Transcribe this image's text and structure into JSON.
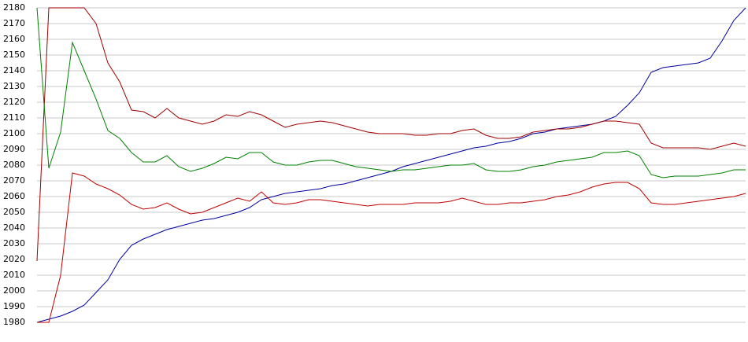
{
  "chart_data": {
    "type": "line",
    "categories": [
      null,
      null,
      null,
      null,
      null,
      null,
      null,
      null,
      null,
      null,
      null,
      null,
      null,
      null,
      null,
      null,
      null,
      null,
      null,
      null,
      null,
      null,
      null,
      null,
      null,
      null,
      null,
      null,
      null,
      null,
      null,
      null,
      null,
      null,
      null,
      null,
      null,
      null,
      null,
      null,
      null,
      null,
      null,
      null,
      null,
      null,
      null,
      null,
      null,
      null,
      null,
      null,
      null,
      null,
      null,
      null,
      null,
      null,
      null,
      null,
      null
    ],
    "series": [
      {
        "color": "#0000a0",
        "values": [
          1980,
          1982,
          1984,
          1987,
          1991,
          1999,
          2007,
          2020,
          2029,
          2033,
          2036,
          2039,
          2041,
          2043,
          2045,
          2046,
          2048,
          2050,
          2053,
          2058,
          2060,
          2062,
          2063,
          2064,
          2065,
          2067,
          2068,
          2070,
          2072,
          2074,
          2076,
          2079,
          2081,
          2083,
          2085,
          2087,
          2089,
          2091,
          2092,
          2094,
          2095,
          2097,
          2100,
          2101,
          2103,
          2104,
          2105,
          2106,
          2108,
          2111,
          2118,
          2126,
          2139,
          2142,
          2143,
          2144,
          2145,
          2148,
          2159,
          2172,
          2180
        ]
      },
      {
        "color": "#a00000",
        "values": [
          2019,
          2180,
          2180,
          2180,
          2180,
          2170,
          2145,
          2133,
          2115,
          2114,
          2110,
          2116,
          2110,
          2108,
          2106,
          2108,
          2112,
          2111,
          2114,
          2112,
          2108,
          2104,
          2106,
          2107,
          2108,
          2107,
          2105,
          2103,
          2101,
          2100,
          2100,
          2100,
          2099,
          2099,
          2100,
          2100,
          2102,
          2103,
          2099,
          2097,
          2097,
          2098,
          2101,
          2102,
          2103,
          2103,
          2104,
          2106,
          2108,
          2108,
          2107,
          2106,
          2094,
          2091,
          2091,
          2091,
          2091,
          2090,
          2092,
          2094,
          2092
        ]
      },
      {
        "color": "#008000",
        "values": [
          2180,
          2078,
          2101,
          2158,
          2140,
          2122,
          2102,
          2097,
          2088,
          2082,
          2082,
          2086,
          2079,
          2076,
          2078,
          2081,
          2085,
          2084,
          2088,
          2088,
          2082,
          2080,
          2080,
          2082,
          2083,
          2083,
          2081,
          2079,
          2078,
          2077,
          2076,
          2077,
          2077,
          2078,
          2079,
          2080,
          2080,
          2081,
          2077,
          2076,
          2076,
          2077,
          2079,
          2080,
          2082,
          2083,
          2084,
          2085,
          2088,
          2088,
          2089,
          2086,
          2074,
          2072,
          2073,
          2073,
          2073,
          2074,
          2075,
          2077,
          2077
        ]
      },
      {
        "color": "#c00000",
        "values": [
          1980,
          1980,
          2010,
          2075,
          2073,
          2068,
          2065,
          2061,
          2055,
          2052,
          2053,
          2056,
          2052,
          2049,
          2050,
          2053,
          2056,
          2059,
          2057,
          2063,
          2056,
          2055,
          2056,
          2058,
          2058,
          2057,
          2056,
          2055,
          2054,
          2055,
          2055,
          2055,
          2056,
          2056,
          2056,
          2057,
          2059,
          2057,
          2055,
          2055,
          2056,
          2056,
          2057,
          2058,
          2060,
          2061,
          2063,
          2066,
          2068,
          2069,
          2069,
          2065,
          2056,
          2055,
          2055,
          2056,
          2057,
          2058,
          2059,
          2060,
          2062
        ]
      }
    ],
    "ylim": [
      1980,
      2180
    ],
    "yticks": [
      1980,
      1990,
      2000,
      2010,
      2020,
      2030,
      2040,
      2050,
      2060,
      2070,
      2080,
      2090,
      2100,
      2110,
      2120,
      2130,
      2140,
      2150,
      2160,
      2170,
      2180
    ],
    "grid": true
  }
}
